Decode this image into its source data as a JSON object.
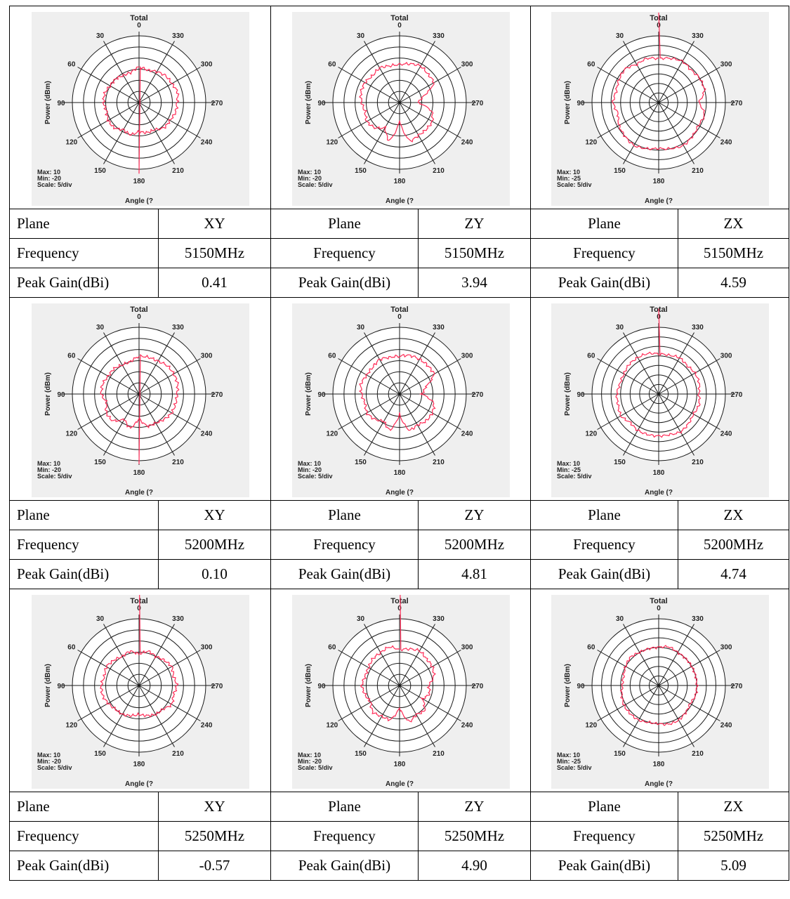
{
  "colors": {
    "trace": "#ff2a55",
    "grid": "#1a1a1a",
    "plot_bg": "#efefef"
  },
  "chart_data": [
    {
      "type": "polar",
      "title": "Total",
      "ylabel": "Power  (dBm)",
      "xlabel": "Angle  (?",
      "max_label": "Max: 10",
      "min_label": "Min: -20",
      "scale_label": "Scale: 5/div",
      "rlim": [
        -20,
        10
      ],
      "angle_labels": [
        "0",
        "30",
        "60",
        "90",
        "120",
        "150",
        "180",
        "210",
        "240",
        "270",
        "300",
        "330"
      ],
      "series": [
        {
          "theta": [
            0,
            15,
            30,
            45,
            60,
            75,
            90,
            105,
            120,
            135,
            150,
            165,
            180,
            195,
            210,
            225,
            240,
            255,
            270,
            285,
            300,
            315,
            330,
            345
          ],
          "r": [
            -4,
            -6,
            -6,
            -5,
            -5,
            -4,
            -4,
            -5,
            -4,
            -4,
            -6,
            -5,
            -7,
            -6,
            -6,
            -4,
            -4,
            -3,
            -3,
            -2,
            -3,
            -3,
            -4,
            -5
          ]
        }
      ]
    },
    {
      "type": "polar",
      "title": "Total",
      "ylabel": "Power  (dBm)",
      "xlabel": "Angle  (?",
      "max_label": "Max: 10",
      "min_label": "Min: -20",
      "scale_label": "Scale: 5/div",
      "rlim": [
        -20,
        10
      ],
      "angle_labels": [
        "0",
        "30",
        "60",
        "90",
        "120",
        "150",
        "180",
        "210",
        "240",
        "270",
        "300",
        "330"
      ],
      "series": [
        {
          "theta": [
            0,
            15,
            30,
            45,
            60,
            75,
            90,
            105,
            120,
            135,
            150,
            165,
            180,
            195,
            210,
            225,
            240,
            255,
            270,
            285,
            300,
            315,
            330,
            345
          ],
          "r": [
            -3,
            -3,
            -2,
            -3,
            -2,
            -2,
            -3,
            -4,
            -3,
            -4,
            -7,
            -2,
            -12,
            -2,
            -3,
            -3,
            -3,
            -5,
            -12,
            -9,
            -2,
            -2,
            -1,
            -2
          ]
        }
      ]
    },
    {
      "type": "polar",
      "title": "Total",
      "ylabel": "Power  (dBm)",
      "xlabel": "Angle  (?",
      "max_label": "Max: 10",
      "min_label": "Min: -25",
      "scale_label": "Scale: 5/div",
      "rlim": [
        -25,
        10
      ],
      "angle_labels": [
        "0",
        "30",
        "60",
        "90",
        "120",
        "150",
        "180",
        "210",
        "240",
        "270",
        "300",
        "330"
      ],
      "series": [
        {
          "theta": [
            0,
            15,
            30,
            45,
            60,
            75,
            90,
            105,
            120,
            135,
            150,
            165,
            180,
            195,
            210,
            225,
            240,
            255,
            270,
            285,
            300,
            315,
            330,
            345
          ],
          "r": [
            -2,
            -1,
            -2,
            0,
            -1,
            -2,
            -1,
            -3,
            -1,
            0,
            1,
            0,
            -1,
            0,
            1,
            0,
            -1,
            0,
            -4,
            0,
            0,
            -1,
            0,
            -1
          ]
        }
      ]
    },
    {
      "type": "polar",
      "title": "Total",
      "ylabel": "Power  (dBm)",
      "xlabel": "Angle  (?",
      "max_label": "Max: 10",
      "min_label": "Min: -20",
      "scale_label": "Scale: 5/div",
      "rlim": [
        -20,
        10
      ],
      "angle_labels": [
        "0",
        "30",
        "60",
        "90",
        "120",
        "150",
        "180",
        "210",
        "240",
        "270",
        "300",
        "330"
      ],
      "series": [
        {
          "theta": [
            0,
            15,
            30,
            45,
            60,
            75,
            90,
            105,
            120,
            135,
            150,
            165,
            180,
            195,
            210,
            225,
            240,
            255,
            270,
            285,
            300,
            315,
            330,
            345
          ],
          "r": [
            -3,
            -5,
            -5,
            -4,
            -4,
            -3,
            -3,
            -5,
            -3,
            -3,
            -7,
            -4,
            -9,
            -5,
            -5,
            -4,
            -3,
            -3,
            -3,
            -2,
            -2,
            -2,
            -3,
            -3
          ]
        }
      ]
    },
    {
      "type": "polar",
      "title": "Total",
      "ylabel": "Power  (dBm)",
      "xlabel": "Angle  (?",
      "max_label": "Max: 10",
      "min_label": "Min: -20",
      "scale_label": "Scale: 5/div",
      "rlim": [
        -20,
        10
      ],
      "angle_labels": [
        "0",
        "30",
        "60",
        "90",
        "120",
        "150",
        "180",
        "210",
        "240",
        "270",
        "300",
        "330"
      ],
      "series": [
        {
          "theta": [
            0,
            15,
            30,
            45,
            60,
            75,
            90,
            105,
            120,
            135,
            150,
            165,
            180,
            195,
            210,
            225,
            240,
            255,
            270,
            285,
            300,
            315,
            330,
            345
          ],
          "r": [
            -3,
            -3,
            -2,
            -3,
            -3,
            -2,
            -3,
            -4,
            -3,
            -4,
            -6,
            -3,
            -11,
            -3,
            -4,
            -3,
            -3,
            -4,
            -10,
            -8,
            -2,
            -2,
            -2,
            -2
          ]
        }
      ]
    },
    {
      "type": "polar",
      "title": "Total",
      "ylabel": "Power  (dBm)",
      "xlabel": "Angle  (?",
      "max_label": "Max: 10",
      "min_label": "Min: -25",
      "scale_label": "Scale: 5/div",
      "rlim": [
        -25,
        10
      ],
      "angle_labels": [
        "0",
        "30",
        "60",
        "90",
        "120",
        "150",
        "180",
        "210",
        "240",
        "270",
        "300",
        "330"
      ],
      "series": [
        {
          "theta": [
            0,
            15,
            30,
            45,
            60,
            75,
            90,
            105,
            120,
            135,
            150,
            165,
            180,
            195,
            210,
            225,
            240,
            255,
            270,
            285,
            300,
            315,
            330,
            345
          ],
          "r": [
            -4,
            -3,
            -3,
            -3,
            -4,
            -4,
            -3,
            -3,
            -2,
            -4,
            -3,
            -3,
            -3,
            -3,
            -2,
            -3,
            -4,
            -3,
            -4,
            -3,
            -3,
            -4,
            -3,
            -4
          ]
        }
      ]
    },
    {
      "type": "polar",
      "title": "Total",
      "ylabel": "Power  (dBm)",
      "xlabel": "Angle  (?",
      "max_label": "Max: 10",
      "min_label": "Min: -20",
      "scale_label": "Scale: 5/div",
      "rlim": [
        -20,
        10
      ],
      "angle_labels": [
        "0",
        "30",
        "60",
        "90",
        "120",
        "150",
        "180",
        "210",
        "240",
        "270",
        "300",
        "330"
      ],
      "series": [
        {
          "theta": [
            0,
            15,
            30,
            45,
            60,
            75,
            90,
            105,
            120,
            135,
            150,
            165,
            180,
            195,
            210,
            225,
            240,
            255,
            270,
            285,
            300,
            315,
            330,
            345
          ],
          "r": [
            -6,
            -4,
            -5,
            -4,
            -3,
            -4,
            -3,
            -3,
            -4,
            -5,
            -5,
            -6,
            -7,
            -6,
            -5,
            -5,
            -3,
            -4,
            -3,
            -4,
            -3,
            -4,
            -5,
            -4
          ]
        }
      ]
    },
    {
      "type": "polar",
      "title": "Total",
      "ylabel": "Power  (dBm)",
      "xlabel": "Angle  (?",
      "max_label": "Max: 10",
      "min_label": "Min: -20",
      "scale_label": "Scale: 5/div",
      "rlim": [
        -20,
        10
      ],
      "angle_labels": [
        "0",
        "30",
        "60",
        "90",
        "120",
        "150",
        "180",
        "210",
        "240",
        "270",
        "300",
        "330"
      ],
      "series": [
        {
          "theta": [
            0,
            15,
            30,
            45,
            60,
            75,
            90,
            105,
            120,
            135,
            150,
            165,
            180,
            195,
            210,
            225,
            240,
            255,
            270,
            285,
            300,
            315,
            330,
            345
          ],
          "r": [
            -4,
            -2,
            -3,
            -3,
            -4,
            -4,
            -3,
            -4,
            -5,
            -3,
            -4,
            -4,
            -10,
            -3,
            -5,
            -4,
            -8,
            -6,
            -7,
            -4,
            -3,
            -3,
            -2,
            -3
          ]
        }
      ]
    },
    {
      "type": "polar",
      "title": "Total",
      "ylabel": "Power  (dBm)",
      "xlabel": "Angle  (?",
      "max_label": "Max: 10",
      "min_label": "Min: -25",
      "scale_label": "Scale: 5/div",
      "rlim": [
        -25,
        10
      ],
      "angle_labels": [
        "0",
        "30",
        "60",
        "90",
        "120",
        "150",
        "180",
        "210",
        "240",
        "270",
        "300",
        "330"
      ],
      "series": [
        {
          "theta": [
            0,
            15,
            30,
            45,
            60,
            75,
            90,
            105,
            120,
            135,
            150,
            165,
            180,
            195,
            210,
            225,
            240,
            255,
            270,
            285,
            300,
            315,
            330,
            345
          ],
          "r": [
            -5,
            -5,
            -5,
            -4,
            -5,
            -6,
            -6,
            -5,
            -4,
            -4,
            -4,
            -5,
            -5,
            -4,
            -4,
            -5,
            -6,
            -5,
            -5,
            -5,
            -5,
            -5,
            -5,
            -4
          ]
        }
      ]
    }
  ],
  "rows": [
    [
      {
        "plane_label": "Plane",
        "plane": "XY",
        "freq_label": "Frequency",
        "freq": "5150MHz",
        "gain_label": "Peak Gain(dBi)",
        "gain": "0.41"
      },
      {
        "plane_label": "Plane",
        "plane": "ZY",
        "freq_label": "Frequency",
        "freq": "5150MHz",
        "gain_label": "Peak Gain(dBi)",
        "gain": "3.94"
      },
      {
        "plane_label": "Plane",
        "plane": "ZX",
        "freq_label": "Frequency",
        "freq": "5150MHz",
        "gain_label": "Peak Gain(dBi)",
        "gain": "4.59"
      }
    ],
    [
      {
        "plane_label": "Plane",
        "plane": "XY",
        "freq_label": "Frequency",
        "freq": "5200MHz",
        "gain_label": "Peak Gain(dBi)",
        "gain": "0.10"
      },
      {
        "plane_label": "Plane",
        "plane": "ZY",
        "freq_label": "Frequency",
        "freq": "5200MHz",
        "gain_label": "Peak Gain(dBi)",
        "gain": "4.81"
      },
      {
        "plane_label": "Plane",
        "plane": "ZX",
        "freq_label": "Frequency",
        "freq": "5200MHz",
        "gain_label": "Peak Gain(dBi)",
        "gain": "4.74"
      }
    ],
    [
      {
        "plane_label": "Plane",
        "plane": "XY",
        "freq_label": "Frequency",
        "freq": "5250MHz",
        "gain_label": "Peak Gain(dBi)",
        "gain": "-0.57"
      },
      {
        "plane_label": "Plane",
        "plane": "ZY",
        "freq_label": "Frequency",
        "freq": "5250MHz",
        "gain_label": "Peak Gain(dBi)",
        "gain": "4.90"
      },
      {
        "plane_label": "Plane",
        "plane": "ZX",
        "freq_label": "Frequency",
        "freq": "5250MHz",
        "gain_label": "Peak Gain(dBi)",
        "gain": "5.09"
      }
    ]
  ]
}
